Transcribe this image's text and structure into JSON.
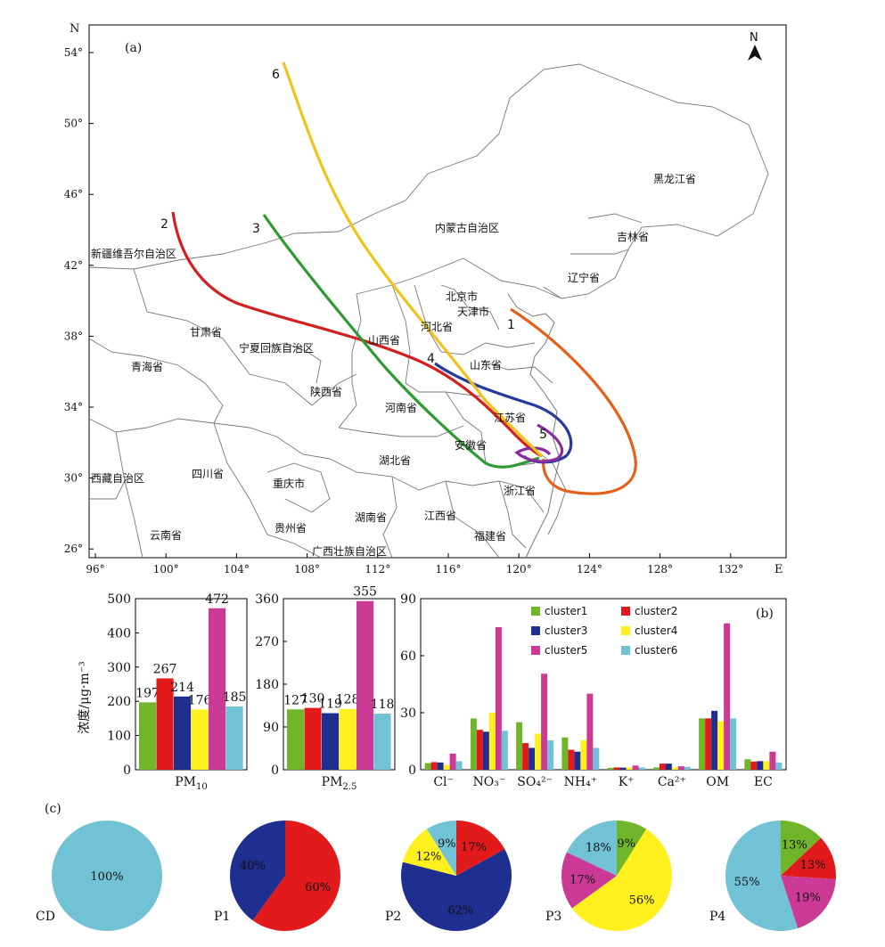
{
  "map": {
    "panel_label": "(a)",
    "north_letter": "N",
    "axis_n": "N",
    "axis_e": "E",
    "lat_ticks": [
      "54°",
      "50°",
      "46°",
      "42°",
      "38°",
      "34°",
      "30°",
      "26°"
    ],
    "lon_ticks": [
      "96°",
      "100°",
      "104°",
      "108°",
      "112°",
      "116°",
      "120°",
      "124°",
      "128°",
      "132°"
    ],
    "provinces": [
      "新疆维吾尔自治区",
      "内蒙古自治区",
      "黑龙江省",
      "吉林省",
      "辽宁省",
      "北京市",
      "天津市",
      "河北省",
      "山西省",
      "山东省",
      "甘肃省",
      "宁夏回族自治区",
      "青海省",
      "陕西省",
      "河南省",
      "江苏省",
      "安徽省",
      "湖北省",
      "四川省",
      "重庆市",
      "西藏自治区",
      "浙江省",
      "湖南省",
      "江西省",
      "贵州省",
      "云南省",
      "福建省",
      "广西壮族自治区"
    ],
    "trajectories": [
      {
        "label": "1",
        "color": "#E4601B"
      },
      {
        "label": "2",
        "color": "#D21F1F"
      },
      {
        "label": "3",
        "color": "#2E9A34"
      },
      {
        "label": "4",
        "color": "#263A9B"
      },
      {
        "label": "5",
        "color": "#8A2BA0"
      },
      {
        "label": "6",
        "color": "#F2C21C"
      }
    ]
  },
  "colors": {
    "cluster1": "#70B52A",
    "cluster2": "#E31A1C",
    "cluster3": "#1F2F8F",
    "cluster4": "#FFF01E",
    "cluster5": "#CB3A95",
    "cluster6": "#72C2D5"
  },
  "chart_data": [
    {
      "type": "bar",
      "panel": "PM10",
      "xlabel": "PM10",
      "ylabel": "浓度/μg·m⁻³",
      "ylim": [
        0,
        500
      ],
      "yticks": [
        "0",
        "100",
        "200",
        "300",
        "400",
        "500"
      ],
      "categories": [
        "cluster1",
        "cluster2",
        "cluster3",
        "cluster4",
        "cluster5",
        "cluster6"
      ],
      "values": [
        197,
        267,
        214,
        176,
        472,
        185
      ],
      "labels": [
        "197",
        "267",
        "214",
        "176",
        "472",
        "185"
      ]
    },
    {
      "type": "bar",
      "panel": "PM2.5",
      "xlabel": "PM2.5",
      "ylim": [
        0,
        360
      ],
      "yticks": [
        "0",
        "90",
        "180",
        "270",
        "360"
      ],
      "categories": [
        "cluster1",
        "cluster2",
        "cluster3",
        "cluster4",
        "cluster5",
        "cluster6"
      ],
      "values": [
        127,
        130,
        119,
        128,
        355,
        118
      ],
      "labels": [
        "127",
        "130",
        "119",
        "128",
        "355",
        "118"
      ]
    },
    {
      "type": "bar",
      "panel": "(b)",
      "ylim": [
        0,
        90
      ],
      "yticks": [
        "0",
        "30",
        "60",
        "90"
      ],
      "legend_position": "top",
      "categories": [
        "Cl⁻",
        "NO₃⁻",
        "SO₄²⁻",
        "NH₄⁺",
        "K⁺",
        "Ca²⁺",
        "OM",
        "EC"
      ],
      "series": [
        {
          "name": "cluster1",
          "values": [
            3.5,
            27,
            25,
            17,
            1,
            1.2,
            27,
            5.5
          ]
        },
        {
          "name": "cluster2",
          "values": [
            4,
            21,
            14,
            10.5,
            1.2,
            3.2,
            27,
            4.3
          ]
        },
        {
          "name": "cluster3",
          "values": [
            3.8,
            20,
            11.5,
            9.5,
            1.1,
            3.2,
            31,
            4.5
          ]
        },
        {
          "name": "cluster4",
          "values": [
            2.5,
            30,
            19,
            15.5,
            1.2,
            1.2,
            25.5,
            4.5
          ]
        },
        {
          "name": "cluster5",
          "values": [
            8.5,
            75,
            50.5,
            40,
            2.2,
            1.8,
            77,
            9.5
          ]
        },
        {
          "name": "cluster6",
          "values": [
            4.5,
            20.5,
            15.5,
            11.5,
            1.2,
            1.5,
            27,
            3.8
          ]
        }
      ]
    },
    {
      "type": "pie",
      "panel_label": "(c)",
      "pies": [
        {
          "name": "CD",
          "slices": [
            {
              "series": "cluster6",
              "value": 100,
              "label": "100%"
            }
          ]
        },
        {
          "name": "P1",
          "slices": [
            {
              "series": "cluster2",
              "value": 60,
              "label": "60%"
            },
            {
              "series": "cluster3",
              "value": 40,
              "label": "40%"
            }
          ]
        },
        {
          "name": "P2",
          "slices": [
            {
              "series": "cluster2",
              "value": 17,
              "label": "17%"
            },
            {
              "series": "cluster3",
              "value": 62,
              "label": "62%"
            },
            {
              "series": "cluster4",
              "value": 12,
              "label": "12%"
            },
            {
              "series": "cluster6",
              "value": 9,
              "label": "9%"
            }
          ]
        },
        {
          "name": "P3",
          "slices": [
            {
              "series": "cluster1",
              "value": 9,
              "label": "9%"
            },
            {
              "series": "cluster4",
              "value": 56,
              "label": "56%"
            },
            {
              "series": "cluster5",
              "value": 17,
              "label": "17%"
            },
            {
              "series": "cluster6",
              "value": 18,
              "label": "18%"
            }
          ]
        },
        {
          "name": "P4",
          "slices": [
            {
              "series": "cluster1",
              "value": 13,
              "label": "13%"
            },
            {
              "series": "cluster2",
              "value": 13,
              "label": "13%"
            },
            {
              "series": "cluster5",
              "value": 19,
              "label": "19%"
            },
            {
              "series": "cluster6",
              "value": 55,
              "label": "55%"
            }
          ]
        }
      ]
    }
  ]
}
